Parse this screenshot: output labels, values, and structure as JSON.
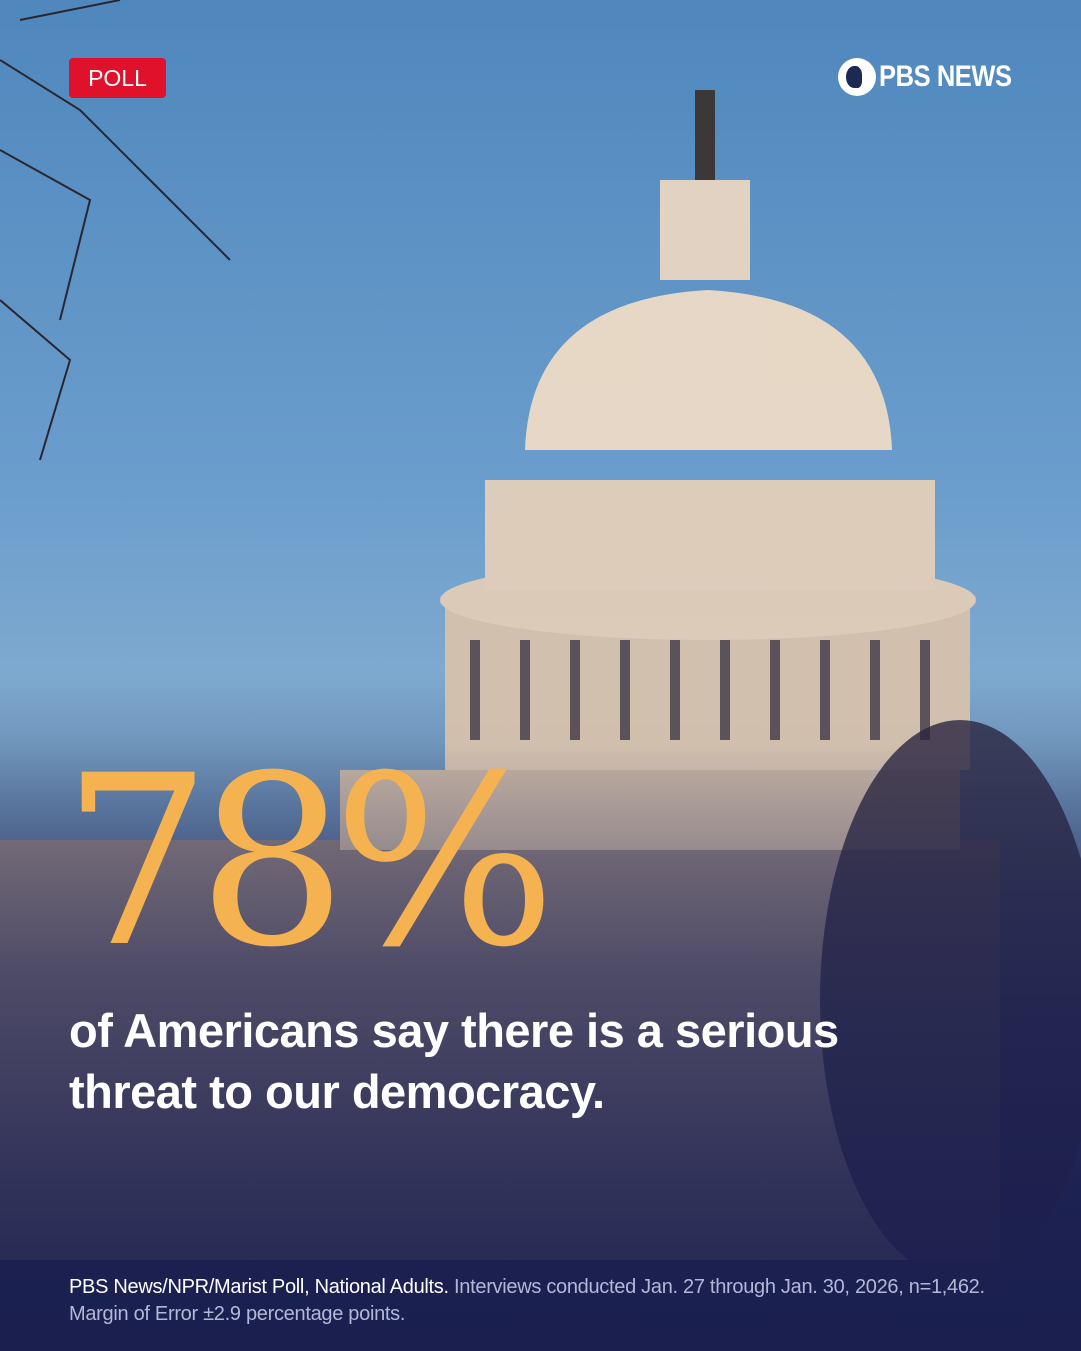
{
  "badge": {
    "label": "POLL",
    "color": "#e0112b"
  },
  "brand": {
    "logo_text": "PBS NEWS",
    "icon": "pbs-head-icon"
  },
  "stat": {
    "value": "78%",
    "color": "#f4b350"
  },
  "headline": "of Americans say there is a serious threat to our democracy.",
  "footer": {
    "source": "PBS News/NPR/Marist Poll, National Adults.",
    "details": "Interviews conducted Jan. 27 through Jan. 30, 2026, n=1,462. Margin of Error ±2.9 percentage points."
  }
}
